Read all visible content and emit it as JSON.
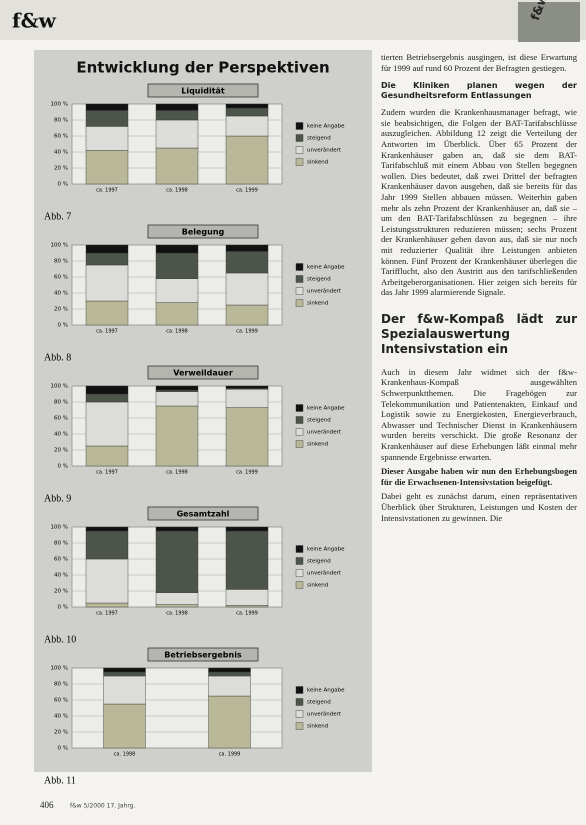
{
  "header": {
    "logo": "f&w",
    "badge": "f&w"
  },
  "figure_title": "Entwicklung der Perspektiven",
  "captions": [
    "Abb. 7",
    "Abb. 8",
    "Abb. 9",
    "Abb. 10",
    "Abb. 11"
  ],
  "chart_data": [
    {
      "type": "stacked_bar",
      "title": "Liquidität",
      "categories": [
        "ca. 1997",
        "ca. 1998",
        "ca. 1999"
      ],
      "series": [
        {
          "name": "sinkend",
          "color": "#b9b99a",
          "values": [
            42,
            45,
            60
          ]
        },
        {
          "name": "unverändert",
          "color": "#dcdcd8",
          "values": [
            30,
            35,
            25
          ]
        },
        {
          "name": "steigend",
          "color": "#4d544a",
          "values": [
            20,
            12,
            10
          ]
        },
        {
          "name": "keine Angabe",
          "color": "#111111",
          "values": [
            8,
            8,
            5
          ]
        }
      ],
      "ylim": [
        0,
        100
      ],
      "yticks": [
        {
          "value": 0,
          "label": "0 %"
        },
        {
          "value": 20,
          "label": "20 %"
        },
        {
          "value": 40,
          "label": "40 %"
        },
        {
          "value": 60,
          "label": "60 %"
        },
        {
          "value": 80,
          "label": "80 %"
        },
        {
          "value": 100,
          "label": "100 %"
        }
      ],
      "grid": true
    },
    {
      "type": "stacked_bar",
      "title": "Belegung",
      "categories": [
        "ca. 1997",
        "ca. 1998",
        "ca. 1999"
      ],
      "series": [
        {
          "name": "sinkend",
          "color": "#b9b99a",
          "values": [
            30,
            28,
            25
          ]
        },
        {
          "name": "unverändert",
          "color": "#dcdcd8",
          "values": [
            45,
            30,
            40
          ]
        },
        {
          "name": "steigend",
          "color": "#4d544a",
          "values": [
            15,
            32,
            27
          ]
        },
        {
          "name": "keine Angabe",
          "color": "#111111",
          "values": [
            10,
            10,
            8
          ]
        }
      ],
      "ylim": [
        0,
        100
      ],
      "yticks": [
        {
          "value": 0,
          "label": "0 %"
        },
        {
          "value": 20,
          "label": "20 %"
        },
        {
          "value": 40,
          "label": "40 %"
        },
        {
          "value": 60,
          "label": "60 %"
        },
        {
          "value": 80,
          "label": "80 %"
        },
        {
          "value": 100,
          "label": "100 %"
        }
      ],
      "grid": true
    },
    {
      "type": "stacked_bar",
      "title": "Verweildauer",
      "categories": [
        "ca. 1997",
        "ca. 1998",
        "ca. 1999"
      ],
      "series": [
        {
          "name": "sinkend",
          "color": "#b9b99a",
          "values": [
            25,
            75,
            73
          ]
        },
        {
          "name": "unverändert",
          "color": "#dcdcd8",
          "values": [
            55,
            18,
            23
          ]
        },
        {
          "name": "steigend",
          "color": "#4d544a",
          "values": [
            10,
            2,
            1
          ]
        },
        {
          "name": "keine Angabe",
          "color": "#111111",
          "values": [
            10,
            5,
            3
          ]
        }
      ],
      "ylim": [
        0,
        100
      ],
      "yticks": [
        {
          "value": 0,
          "label": "0 %"
        },
        {
          "value": 20,
          "label": "20 %"
        },
        {
          "value": 40,
          "label": "40 %"
        },
        {
          "value": 60,
          "label": "60 %"
        },
        {
          "value": 80,
          "label": "80 %"
        },
        {
          "value": 100,
          "label": "100 %"
        }
      ],
      "grid": true
    },
    {
      "type": "stacked_bar",
      "title": "Gesamtzahl",
      "categories": [
        "ca. 1997",
        "ca. 1998",
        "ca. 1999"
      ],
      "series": [
        {
          "name": "sinkend",
          "color": "#b9b99a",
          "values": [
            5,
            3,
            2
          ]
        },
        {
          "name": "unverändert",
          "color": "#dcdcd8",
          "values": [
            55,
            15,
            20
          ]
        },
        {
          "name": "steigend",
          "color": "#4d544a",
          "values": [
            35,
            77,
            73
          ]
        },
        {
          "name": "keine Angabe",
          "color": "#111111",
          "values": [
            5,
            5,
            5
          ]
        }
      ],
      "ylim": [
        0,
        100
      ],
      "yticks": [
        {
          "value": 0,
          "label": "0 %"
        },
        {
          "value": 20,
          "label": "20 %"
        },
        {
          "value": 40,
          "label": "40 %"
        },
        {
          "value": 60,
          "label": "60 %"
        },
        {
          "value": 80,
          "label": "80 %"
        },
        {
          "value": 100,
          "label": "100 %"
        }
      ],
      "grid": true
    },
    {
      "type": "stacked_bar",
      "title": "Betriebsergebnis",
      "categories": [
        "ca. 1998",
        "ca. 1999"
      ],
      "series": [
        {
          "name": "sinkend",
          "color": "#b9b99a",
          "values": [
            55,
            65
          ]
        },
        {
          "name": "unverändert",
          "color": "#dcdcd8",
          "values": [
            35,
            25
          ]
        },
        {
          "name": "steigend",
          "color": "#4d544a",
          "values": [
            5,
            5
          ]
        },
        {
          "name": "keine Angabe",
          "color": "#111111",
          "values": [
            5,
            5
          ]
        }
      ],
      "ylim": [
        0,
        100
      ],
      "yticks": [
        {
          "value": 0,
          "label": "0 %"
        },
        {
          "value": 20,
          "label": "20 %"
        },
        {
          "value": 40,
          "label": "40 %"
        },
        {
          "value": 60,
          "label": "60 %"
        },
        {
          "value": 80,
          "label": "80 %"
        },
        {
          "value": 100,
          "label": "100 %"
        }
      ],
      "grid": true
    }
  ],
  "article": {
    "p0": "tierten Betriebsergebnis ausgingen, ist diese Erwartung für 1999 auf rund 60 Prozent der Befragten gestiegen.",
    "h1": "Die Kliniken planen wegen der Gesundheitsreform Entlassungen",
    "p1": "Zudem wurden die Krankenhausmanager befragt, wie sie beabsichtigen, die Folgen der BAT-Tarifabschlüsse auszugleichen. Abbildung 12 zeigt die Verteilung der Antworten im Überblick. Über 65 Prozent der Krankenhäuser gaben an, daß sie dem BAT-Tarifabschluß mit einem Abbau von Stellen begegnen wollen. Dies bedeutet, daß zwei Drittel der befragten Krankenhäuser davon ausgehen, daß sie bereits für das Jahr 1999 Stellen abbauen müssen. Weiterhin gaben mehr als zehn Prozent der Krankenhäuser an, daß sie – um den BAT-Tarifabschlüssen zu begegnen – ihre Leistungsstrukturen reduzieren müssen; sechs Prozent der Krankenhäuser gehen davon aus, daß sie nur noch mit reduzierter Qualität ihre Leistungen anbieten können. Fünf Prozent der Krankenhäuser überlegen die Tarifflucht, also den Austritt aus den tarifschließenden Arbeitgeberorganisationen. Hier zeigen sich bereits für das Jahr 1999 alarmierende Signale.",
    "h2": "Der f&w-Kompaß lädt zur Spezialauswertung Intensivstation ein",
    "p2": "Auch in diesem Jahr widmet sich der f&w-Krankenhaus-Kompaß ausgewählten Schwerpunktthemen. Die Fragebögen zur Telekommunikation und Patientenakten, Einkauf und Logistik sowie zu Energiekosten, Energieverbrauch, Abwasser und Technischer Dienst in Krankenhäusern wurden bereits verschickt. Die große Resonanz der Krankenhäuser auf diese Erhebungen läßt einmal mehr spannende Ergebnisse erwarten.",
    "p3": "Dieser Ausgabe haben wir nun den Erhebungsbogen für die Erwachsenen-Intensivstation beigefügt.",
    "p4": "Dabei geht es zunächst darum, einen repräsentativen Überblick über Strukturen, Leistungen und Kosten der Intensivstationen zu gewinnen. Die"
  },
  "footer": {
    "page": "406",
    "text": "f&w 5/2000 17. Jahrg."
  }
}
